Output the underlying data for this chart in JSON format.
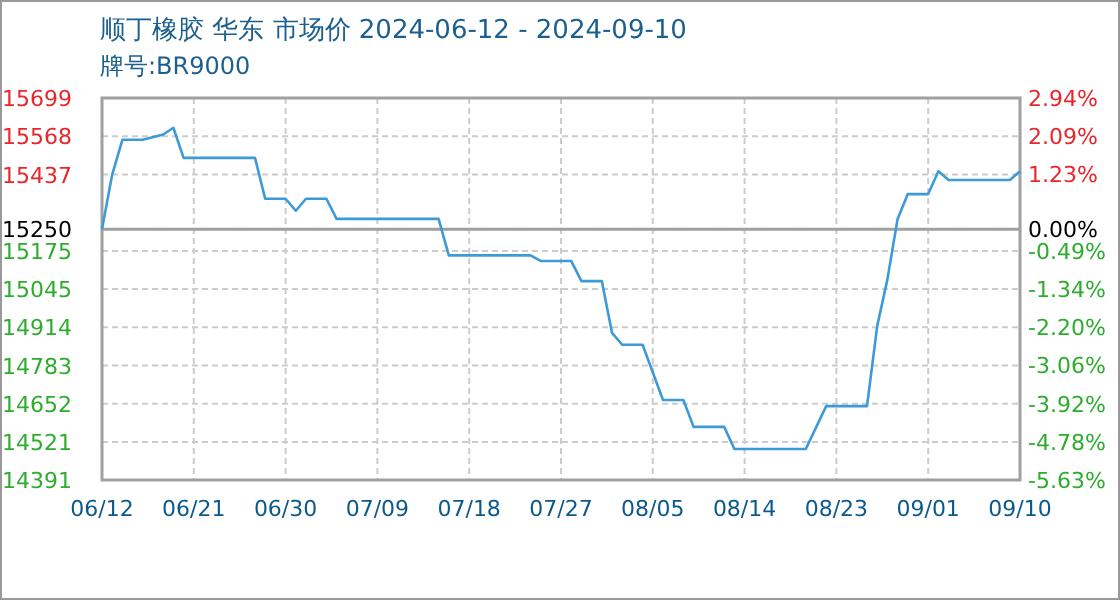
{
  "chart_data": {
    "type": "line",
    "title": "顺丁橡胶 华东 市场价 2024-06-12 - 2024-09-10",
    "subtitle": "牌号:BR9000",
    "x": [
      "2024-06-12",
      "2024-06-13",
      "2024-06-14",
      "2024-06-16",
      "2024-06-18",
      "2024-06-19",
      "2024-06-20",
      "2024-06-27",
      "2024-06-28",
      "2024-06-30",
      "2024-07-01",
      "2024-07-02",
      "2024-07-04",
      "2024-07-05",
      "2024-07-15",
      "2024-07-16",
      "2024-07-24",
      "2024-07-25",
      "2024-07-28",
      "2024-07-29",
      "2024-07-31",
      "2024-08-01",
      "2024-08-02",
      "2024-08-04",
      "2024-08-06",
      "2024-08-08",
      "2024-08-09",
      "2024-08-12",
      "2024-08-13",
      "2024-08-20",
      "2024-08-22",
      "2024-08-26",
      "2024-08-27",
      "2024-08-28",
      "2024-08-29",
      "2024-08-30",
      "2024-09-01",
      "2024-09-02",
      "2024-09-03",
      "2024-09-09",
      "2024-09-10"
    ],
    "series": [
      {
        "color": "#3d9ad8",
        "values": [
          15250,
          15437,
          15556,
          15556,
          15574,
          15597,
          15494,
          15494,
          15354,
          15354,
          15313,
          15354,
          15354,
          15285,
          15285,
          15160,
          15160,
          15141,
          15141,
          15072,
          15072,
          14895,
          14854,
          14854,
          14665,
          14665,
          14573,
          14573,
          14497,
          14497,
          14644,
          14644,
          14918,
          15078,
          15285,
          15370,
          15370,
          15448,
          15418,
          15418,
          15448
        ]
      }
    ],
    "xlim": [
      "2024-06-12",
      "2024-09-10"
    ],
    "xticks": [
      {
        "value": "2024-06-12",
        "label": "06/12"
      },
      {
        "value": "2024-06-21",
        "label": "06/21"
      },
      {
        "value": "2024-06-30",
        "label": "06/30"
      },
      {
        "value": "2024-07-09",
        "label": "07/09"
      },
      {
        "value": "2024-07-18",
        "label": "07/18"
      },
      {
        "value": "2024-07-27",
        "label": "07/27"
      },
      {
        "value": "2024-08-05",
        "label": "08/05"
      },
      {
        "value": "2024-08-14",
        "label": "08/14"
      },
      {
        "value": "2024-08-23",
        "label": "08/23"
      },
      {
        "value": "2024-09-01",
        "label": "09/01"
      },
      {
        "value": "2024-09-10",
        "label": "09/10"
      }
    ],
    "ylim": [
      14391,
      15699
    ],
    "yticks": [
      14391,
      14521,
      14652,
      14783,
      14914,
      15045,
      15175,
      15250,
      15437,
      15568,
      15699
    ],
    "y2lim": [
      -5.63,
      2.94
    ],
    "y2ticks": [
      {
        "value": -5.63,
        "label": "-5.63%"
      },
      {
        "value": -4.78,
        "label": "-4.78%"
      },
      {
        "value": -3.92,
        "label": "-3.92%"
      },
      {
        "value": -3.06,
        "label": "-3.06%"
      },
      {
        "value": -2.2,
        "label": "-2.20%"
      },
      {
        "value": -1.34,
        "label": "-1.34%"
      },
      {
        "value": -0.49,
        "label": "-0.49%"
      },
      {
        "value": 0,
        "label": "0.00%"
      },
      {
        "value": 1.23,
        "label": "1.23%"
      },
      {
        "value": 2.09,
        "label": "2.09%"
      },
      {
        "value": 2.94,
        "label": "2.94%"
      }
    ],
    "ref_lines": [
      {
        "axis": "y",
        "value": 15250,
        "color": "#a0a0a0"
      }
    ],
    "grid": true
  }
}
